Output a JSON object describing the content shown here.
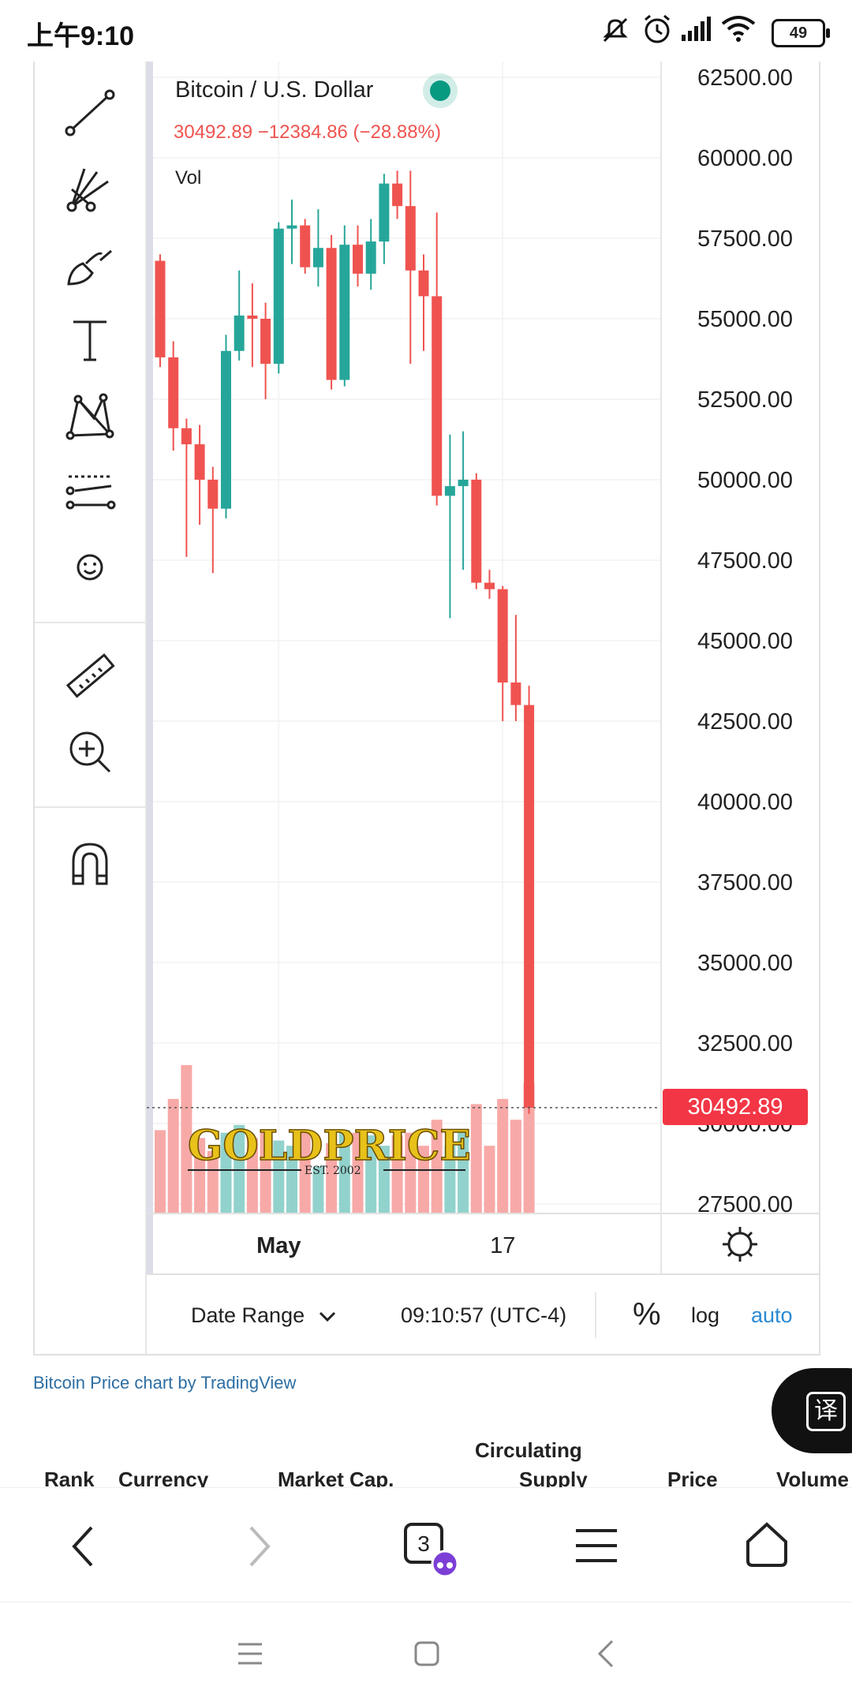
{
  "status_bar": {
    "time": "上午9:10",
    "battery": "49"
  },
  "legend": {
    "symbol": "Bitcoin / U.S. Dollar",
    "values": "30492.89  −12384.86 (−28.88%)",
    "vol_label": "Vol"
  },
  "price_axis": {
    "labels": [
      "62500.00",
      "60000.00",
      "57500.00",
      "55000.00",
      "52500.00",
      "50000.00",
      "47500.00",
      "45000.00",
      "42500.00",
      "40000.00",
      "37500.00",
      "35000.00",
      "32500.00",
      "30000.00",
      "27500.00"
    ],
    "last_price": "30492.89"
  },
  "time_axis": {
    "labels": [
      "May",
      "17"
    ]
  },
  "bottom_bar": {
    "date_range": "Date Range",
    "time": "09:10:57 (UTC-4)",
    "percent": "%",
    "log": "log",
    "auto": "auto"
  },
  "credit": "Bitcoin Price chart by TradingView",
  "watermark": {
    "text": "GOLDPRICE",
    "sub": "EST. 2002"
  },
  "translate_fab": "译",
  "table_header": {
    "rank": "Rank",
    "currency": "Currency",
    "market_cap": "Market Cap.",
    "supply_line1": "Circulating",
    "supply_line2": "Supply",
    "price": "Price",
    "volume": "Volume"
  },
  "browser_nav": {
    "tab_count": "3"
  },
  "colors": {
    "up": "#26a69a",
    "down": "#ef5350",
    "vol_up": "#92d2cc",
    "vol_down": "#f7a9a7",
    "accent": "#2a8ad4",
    "price_tag": "#f23645"
  },
  "chart_data": {
    "type": "candlestick",
    "title": "Bitcoin / U.S. Dollar",
    "ylim": [
      27000,
      63000
    ],
    "ylabel": "",
    "xlabel": "",
    "x_ticks": [
      {
        "label": "May",
        "index": 9
      },
      {
        "label": "17",
        "index": 26
      }
    ],
    "candles": [
      {
        "o": 56800,
        "h": 57000,
        "l": 53500,
        "c": 53800
      },
      {
        "o": 53800,
        "h": 54300,
        "l": 50900,
        "c": 51600
      },
      {
        "o": 51600,
        "h": 51900,
        "l": 47600,
        "c": 51100
      },
      {
        "o": 51100,
        "h": 51700,
        "l": 48600,
        "c": 50000
      },
      {
        "o": 50000,
        "h": 50400,
        "l": 47100,
        "c": 49100
      },
      {
        "o": 49100,
        "h": 54500,
        "l": 48800,
        "c": 54000
      },
      {
        "o": 54000,
        "h": 56500,
        "l": 53700,
        "c": 55100
      },
      {
        "o": 55100,
        "h": 56100,
        "l": 53500,
        "c": 55000
      },
      {
        "o": 55000,
        "h": 55500,
        "l": 52500,
        "c": 53600
      },
      {
        "o": 53600,
        "h": 58000,
        "l": 53300,
        "c": 57800
      },
      {
        "o": 57800,
        "h": 58700,
        "l": 56700,
        "c": 57900
      },
      {
        "o": 57900,
        "h": 58100,
        "l": 56400,
        "c": 56600
      },
      {
        "o": 56600,
        "h": 58400,
        "l": 56000,
        "c": 57200
      },
      {
        "o": 57200,
        "h": 57600,
        "l": 52800,
        "c": 53100
      },
      {
        "o": 53100,
        "h": 57900,
        "l": 52900,
        "c": 57300
      },
      {
        "o": 57300,
        "h": 57900,
        "l": 56000,
        "c": 56400
      },
      {
        "o": 56400,
        "h": 58100,
        "l": 55900,
        "c": 57400
      },
      {
        "o": 57400,
        "h": 59500,
        "l": 56700,
        "c": 59200
      },
      {
        "o": 59200,
        "h": 59600,
        "l": 58100,
        "c": 58500
      },
      {
        "o": 58500,
        "h": 59600,
        "l": 53600,
        "c": 56500
      },
      {
        "o": 56500,
        "h": 57000,
        "l": 54000,
        "c": 55700
      },
      {
        "o": 55700,
        "h": 58300,
        "l": 49200,
        "c": 49500
      },
      {
        "o": 49500,
        "h": 51400,
        "l": 45700,
        "c": 49800
      },
      {
        "o": 49800,
        "h": 51500,
        "l": 47200,
        "c": 50000
      },
      {
        "o": 50000,
        "h": 50200,
        "l": 46600,
        "c": 46800
      },
      {
        "o": 46800,
        "h": 47200,
        "l": 46300,
        "c": 46600
      },
      {
        "o": 46600,
        "h": 46700,
        "l": 42500,
        "c": 43700
      },
      {
        "o": 43700,
        "h": 45800,
        "l": 42500,
        "c": 43000
      },
      {
        "o": 43000,
        "h": 43600,
        "l": 30300,
        "c": 30492.89
      }
    ],
    "volume_max": 100,
    "volumes": [
      32,
      44,
      57,
      29,
      24,
      31,
      34,
      29,
      31,
      28,
      26,
      32,
      18,
      27,
      32,
      31,
      30,
      26,
      30,
      31,
      26,
      36,
      26,
      32,
      42,
      26,
      44,
      36,
      50
    ]
  }
}
